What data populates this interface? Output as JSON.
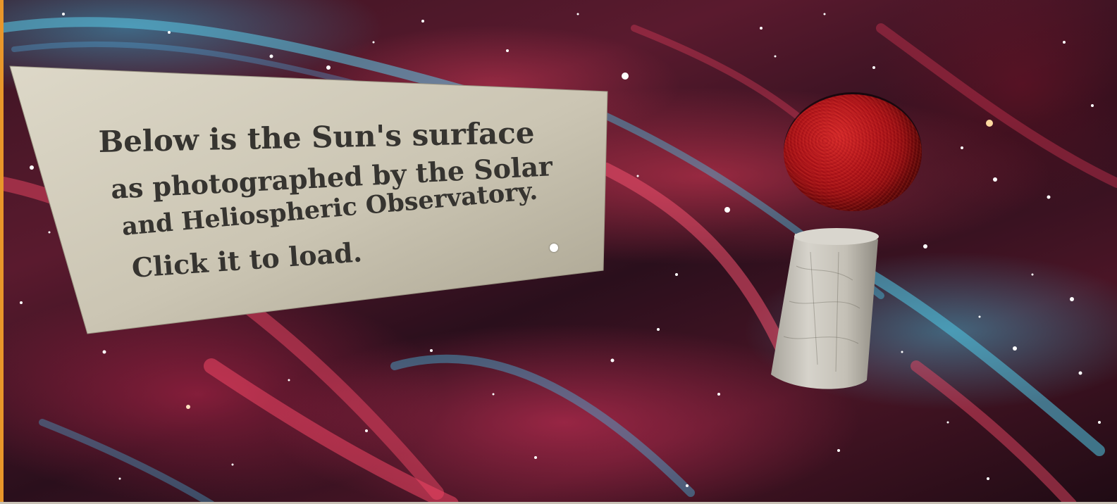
{
  "scene": {
    "backdrop_icon": "nebula-backdrop-icon",
    "colors": {
      "sign_face": "#cfc9b8",
      "sign_text": "#363430",
      "sun": "#b3121a",
      "pedestal": "#bdb9b0",
      "frame_edge": "#e8962a"
    }
  },
  "sign": {
    "lines": [
      "Below is the Sun's surface",
      "as photographed by the Solar",
      "and Heliospheric Observatory.",
      "Click it to load."
    ]
  },
  "objects": {
    "sun_icon": "sun-sphere-icon",
    "pedestal_icon": "pedestal-cylinder-icon",
    "cursor_icon": "gaze-cursor-icon"
  }
}
